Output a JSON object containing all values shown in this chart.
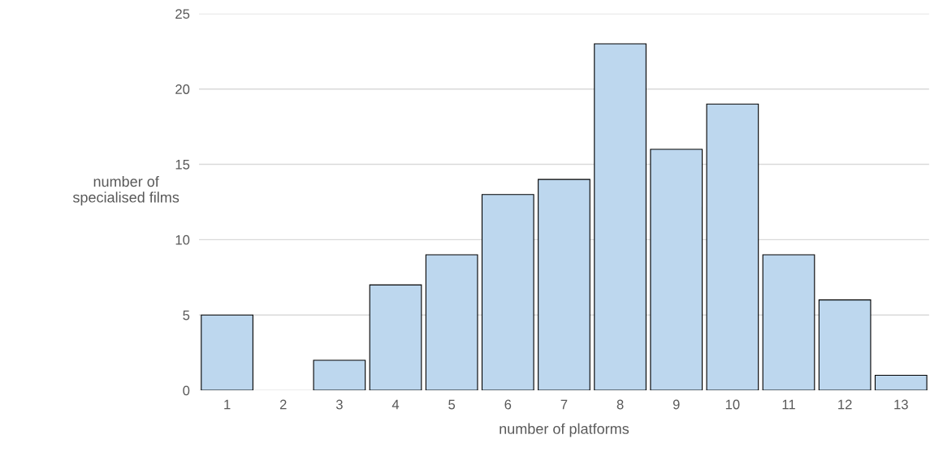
{
  "chart_data": {
    "type": "bar",
    "xlabel": "number of platforms",
    "ylabel": "number of\nspecialised films",
    "categories": [
      "1",
      "2",
      "3",
      "4",
      "5",
      "6",
      "7",
      "8",
      "9",
      "10",
      "11",
      "12",
      "13"
    ],
    "values": [
      5,
      0,
      2,
      7,
      9,
      13,
      14,
      23,
      16,
      19,
      9,
      6,
      1
    ],
    "color": "#bdd7ee",
    "ylim": [
      0,
      25
    ],
    "yticks": [
      0,
      5,
      10,
      15,
      20,
      25
    ],
    "grid": "y"
  }
}
